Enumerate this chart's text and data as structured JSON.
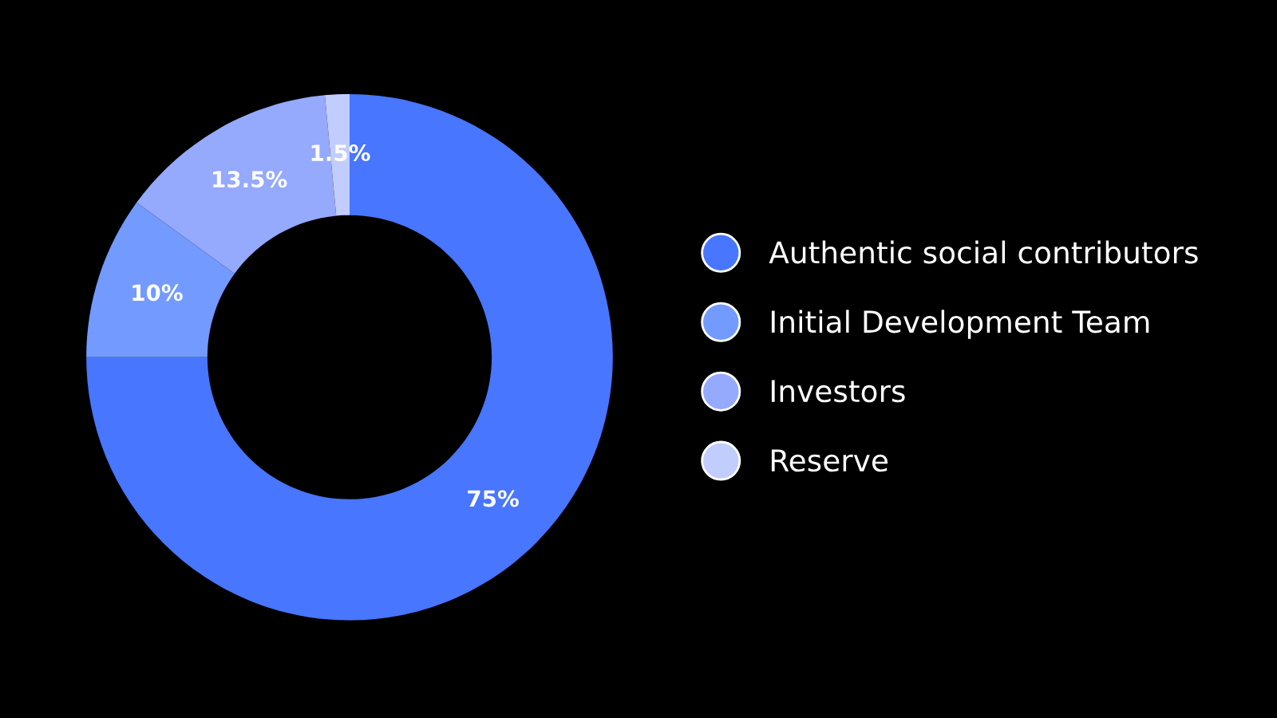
{
  "chart_data": {
    "type": "donut",
    "categories": [
      "Authentic social contributors",
      "Initial Development Team",
      "Investors",
      "Reserve"
    ],
    "values": [
      75,
      10,
      13.5,
      1.5
    ],
    "colors": [
      "#4876fe",
      "#729aff",
      "#95a9fd",
      "#c1cdfd"
    ],
    "value_labels": [
      "75%",
      "10%",
      "13.5%",
      "1.5%"
    ],
    "legend": "right"
  }
}
